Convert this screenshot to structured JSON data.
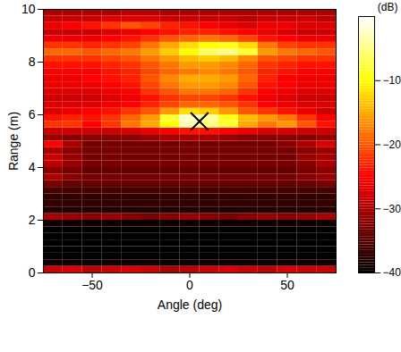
{
  "chart_data": {
    "type": "heatmap",
    "x_label": "Angle (deg)",
    "y_label": "Range (m)",
    "xlim": [
      -75,
      75
    ],
    "ylim": [
      0,
      10
    ],
    "xticks": [
      -50,
      0,
      50
    ],
    "yticks": [
      0,
      2,
      4,
      6,
      8,
      10
    ],
    "x": [
      -70,
      -60,
      -50,
      -40,
      -30,
      -20,
      -10,
      0,
      10,
      20,
      30,
      40,
      50,
      60,
      70
    ],
    "y": [
      0.125,
      0.375,
      0.625,
      0.875,
      1.125,
      1.375,
      1.625,
      1.875,
      2.125,
      2.375,
      2.625,
      2.875,
      3.125,
      3.375,
      3.625,
      3.875,
      4.125,
      4.375,
      4.625,
      4.875,
      5.125,
      5.375,
      5.625,
      5.875,
      6.125,
      6.375,
      6.625,
      6.875,
      7.125,
      7.375,
      7.625,
      7.875,
      8.125,
      8.375,
      8.625,
      8.875,
      9.125,
      9.375,
      9.625,
      9.875
    ],
    "values": [
      [
        -28,
        -27,
        -29,
        -28,
        -27,
        -28,
        -30,
        -29,
        -28,
        -27,
        -28,
        -29,
        -27,
        -28,
        -28
      ],
      [
        -39,
        -39,
        -39,
        -39,
        -39,
        -39,
        -39,
        -39,
        -39,
        -39,
        -39,
        -39,
        -39,
        -39,
        -39
      ],
      [
        -40,
        -40,
        -40,
        -40,
        -40,
        -40,
        -40,
        -40,
        -40,
        -40,
        -40,
        -40,
        -40,
        -40,
        -40
      ],
      [
        -40,
        -40,
        -40,
        -40,
        -40,
        -40,
        -40,
        -40,
        -40,
        -40,
        -40,
        -40,
        -40,
        -40,
        -40
      ],
      [
        -40,
        -40,
        -40,
        -40,
        -40,
        -40,
        -40,
        -40,
        -40,
        -40,
        -40,
        -40,
        -40,
        -40,
        -40
      ],
      [
        -40,
        -40,
        -40,
        -40,
        -40,
        -40,
        -40,
        -40,
        -40,
        -40,
        -40,
        -40,
        -40,
        -40,
        -40
      ],
      [
        -40,
        -40,
        -40,
        -40,
        -40,
        -40,
        -40,
        -40,
        -40,
        -40,
        -40,
        -40,
        -40,
        -40,
        -40
      ],
      [
        -39,
        -39,
        -39,
        -39,
        -39,
        -39,
        -39,
        -39,
        -39,
        -39,
        -39,
        -39,
        -39,
        -39,
        -39
      ],
      [
        -30,
        -31,
        -32,
        -31,
        -32,
        -33,
        -32,
        -31,
        -32,
        -33,
        -32,
        -31,
        -32,
        -31,
        -30
      ],
      [
        -38,
        -38,
        -38,
        -38,
        -38,
        -38,
        -38,
        -38,
        -38,
        -38,
        -38,
        -38,
        -38,
        -38,
        -38
      ],
      [
        -37,
        -37,
        -37,
        -37,
        -37,
        -37,
        -37,
        -37,
        -37,
        -37,
        -37,
        -37,
        -37,
        -37,
        -37
      ],
      [
        -37,
        -37,
        -37,
        -37,
        -37,
        -37,
        -37,
        -37,
        -37,
        -37,
        -37,
        -37,
        -37,
        -37,
        -37
      ],
      [
        -36,
        -36,
        -36,
        -36,
        -36,
        -36,
        -36,
        -36,
        -36,
        -36,
        -36,
        -36,
        -36,
        -36,
        -36
      ],
      [
        -33,
        -34,
        -34,
        -34,
        -34,
        -34,
        -34,
        -34,
        -34,
        -34,
        -34,
        -34,
        -34,
        -34,
        -33
      ],
      [
        -30,
        -32,
        -33,
        -33,
        -33,
        -33,
        -33,
        -33,
        -33,
        -33,
        -33,
        -33,
        -33,
        -32,
        -31
      ],
      [
        -32,
        -33,
        -34,
        -34,
        -34,
        -34,
        -34,
        -34,
        -34,
        -34,
        -34,
        -34,
        -34,
        -33,
        -32
      ],
      [
        -29,
        -31,
        -33,
        -33,
        -33,
        -33,
        -33,
        -33,
        -33,
        -33,
        -33,
        -33,
        -33,
        -32,
        -30
      ],
      [
        -28,
        -31,
        -33,
        -33,
        -33,
        -33,
        -33,
        -33,
        -33,
        -33,
        -33,
        -33,
        -33,
        -31,
        -30
      ],
      [
        -30,
        -32,
        -33,
        -33,
        -33,
        -33,
        -33,
        -33,
        -33,
        -33,
        -33,
        -33,
        -33,
        -32,
        -31
      ],
      [
        -25,
        -30,
        -33,
        -33,
        -33,
        -33,
        -33,
        -33,
        -33,
        -33,
        -33,
        -33,
        -32,
        -30,
        -27
      ],
      [
        -31,
        -32,
        -32,
        -32,
        -32,
        -31,
        -30,
        -30,
        -30,
        -31,
        -32,
        -32,
        -32,
        -32,
        -31
      ],
      [
        -28,
        -28,
        -28,
        -28,
        -27,
        -26,
        -25,
        -24,
        -24,
        -25,
        -26,
        -27,
        -27,
        -28,
        -28
      ],
      [
        -22,
        -22,
        -25,
        -22,
        -18,
        -15,
        -10,
        -3,
        -5,
        -8,
        -15,
        -18,
        -16,
        -20,
        -24
      ],
      [
        -24,
        -23,
        -24,
        -22,
        -19,
        -16,
        -8,
        -2,
        -4,
        -9,
        -14,
        -16,
        -18,
        -22,
        -25
      ],
      [
        -27,
        -26,
        -25,
        -24,
        -22,
        -20,
        -16,
        -12,
        -13,
        -16,
        -20,
        -22,
        -24,
        -26,
        -28
      ],
      [
        -27,
        -27,
        -27,
        -26,
        -25,
        -23,
        -21,
        -19,
        -19,
        -20,
        -22,
        -25,
        -26,
        -27,
        -27
      ],
      [
        -28,
        -28,
        -28,
        -27,
        -26,
        -24,
        -22,
        -21,
        -21,
        -22,
        -24,
        -26,
        -27,
        -28,
        -28
      ],
      [
        -27,
        -27,
        -27,
        -26,
        -25,
        -22,
        -20,
        -18,
        -18,
        -19,
        -22,
        -25,
        -26,
        -27,
        -27
      ],
      [
        -26,
        -26,
        -26,
        -25,
        -24,
        -21,
        -18,
        -16,
        -16,
        -17,
        -20,
        -24,
        -25,
        -26,
        -26
      ],
      [
        -26,
        -26,
        -25,
        -24,
        -23,
        -20,
        -17,
        -15,
        -15,
        -16,
        -19,
        -23,
        -25,
        -26,
        -26
      ],
      [
        -25,
        -25,
        -25,
        -24,
        -23,
        -21,
        -19,
        -18,
        -17,
        -18,
        -20,
        -23,
        -24,
        -25,
        -25
      ],
      [
        -24,
        -24,
        -24,
        -23,
        -22,
        -20,
        -18,
        -16,
        -16,
        -17,
        -19,
        -22,
        -23,
        -24,
        -24
      ],
      [
        -22,
        -22,
        -22,
        -21,
        -20,
        -18,
        -16,
        -14,
        -13,
        -14,
        -17,
        -20,
        -21,
        -22,
        -22
      ],
      [
        -19,
        -19,
        -20,
        -19,
        -18,
        -16,
        -13,
        -10,
        -6,
        -5,
        -8,
        -16,
        -18,
        -19,
        -20
      ],
      [
        -22,
        -22,
        -23,
        -22,
        -21,
        -18,
        -15,
        -12,
        -10,
        -9,
        -12,
        -18,
        -21,
        -22,
        -22
      ],
      [
        -26,
        -26,
        -26,
        -25,
        -24,
        -22,
        -20,
        -19,
        -18,
        -19,
        -21,
        -24,
        -25,
        -26,
        -26
      ],
      [
        -28,
        -28,
        -28,
        -27,
        -26,
        -25,
        -24,
        -23,
        -23,
        -24,
        -25,
        -26,
        -27,
        -28,
        -28
      ],
      [
        -26,
        -25,
        -24,
        -22,
        -20,
        -21,
        -23,
        -24,
        -25,
        -26,
        -27,
        -26,
        -26,
        -27,
        -27
      ],
      [
        -28,
        -28,
        -28,
        -27,
        -27,
        -27,
        -28,
        -28,
        -28,
        -28,
        -29,
        -28,
        -28,
        -28,
        -29
      ],
      [
        -30,
        -30,
        -30,
        -30,
        -29,
        -29,
        -30,
        -30,
        -30,
        -30,
        -30,
        -30,
        -30,
        -30,
        -30
      ]
    ],
    "colorbar": {
      "lim": [
        -40,
        0
      ],
      "ticks": [
        -40,
        -30,
        -20,
        -10
      ],
      "label": "(dB)"
    },
    "annotations": [
      {
        "x": 5,
        "y": 5.75,
        "marker": "times"
      }
    ]
  }
}
